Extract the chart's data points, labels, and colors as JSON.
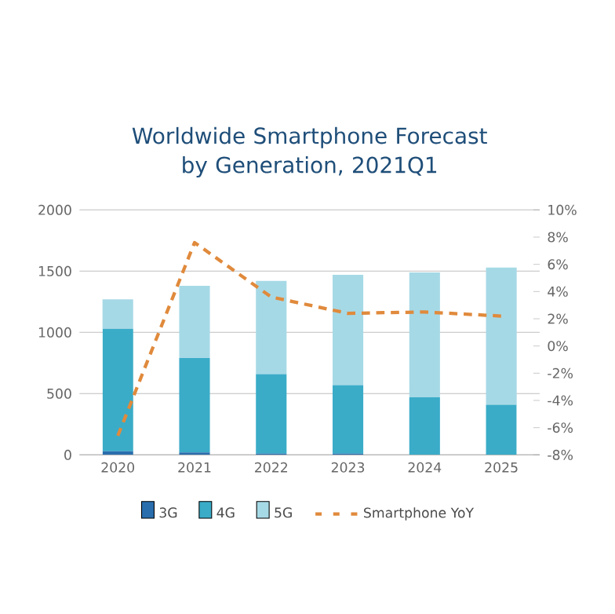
{
  "chart_data": {
    "type": "bar",
    "title": "Worldwide Smartphone Forecast by Generation, 2021Q1",
    "categories": [
      "2020",
      "2021",
      "2022",
      "2023",
      "2024",
      "2025"
    ],
    "stacked": true,
    "series": [
      {
        "name": "3G",
        "color": "#2a6ead",
        "values": [
          30,
          20,
          10,
          10,
          null,
          null
        ]
      },
      {
        "name": "4G",
        "color": "#3aacc8",
        "values": [
          1000,
          770,
          650,
          560,
          470,
          410
        ]
      },
      {
        "name": "5G",
        "color": "#a6d9e6",
        "values": [
          240,
          590,
          760,
          900,
          1020,
          1120
        ]
      },
      {
        "name": "Smartphone YoY",
        "type": "line",
        "axis": "y2",
        "color": "#e08a3c",
        "line_style": "dashed",
        "values": [
          -6.6,
          7.6,
          3.6,
          2.4,
          2.5,
          2.2
        ]
      }
    ],
    "ylim": [
      0,
      2000
    ],
    "yticks": [
      0,
      500,
      1000,
      1500,
      2000
    ],
    "y2lim": [
      -8,
      10
    ],
    "y2ticks": [
      {
        "value": -8,
        "label": "-8%"
      },
      {
        "value": -6,
        "label": "-6%"
      },
      {
        "value": -4,
        "label": "-4%"
      },
      {
        "value": -2,
        "label": "-2%"
      },
      {
        "value": 0,
        "label": "0%"
      },
      {
        "value": 2,
        "label": "2%"
      },
      {
        "value": 4,
        "label": "4%"
      },
      {
        "value": 6,
        "label": "6%"
      },
      {
        "value": 8,
        "label": "8%"
      },
      {
        "value": 10,
        "label": "10%"
      }
    ],
    "grid": "y",
    "legend": "bottom"
  }
}
